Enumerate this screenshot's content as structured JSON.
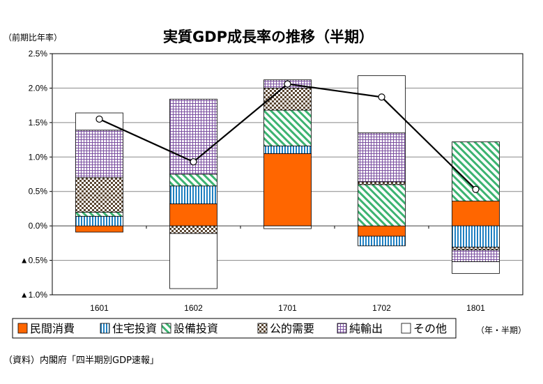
{
  "chart_data": {
    "type": "bar",
    "title": "実質GDP成長率の推移（半期）",
    "ylabel": "（前期比年率）",
    "xlabel": "（年・半期）",
    "source": "（資料）内閣府「四半期別GDP速報」",
    "categories": [
      "1601",
      "1602",
      "1701",
      "1702",
      "1801"
    ],
    "ylim": [
      -1.0,
      2.5
    ],
    "yticks": [
      2.5,
      2.0,
      1.5,
      1.0,
      0.5,
      0.0,
      -0.5,
      -1.0
    ],
    "ytick_labels": [
      "2.5%",
      "2.0%",
      "1.5%",
      "1.0%",
      "0.5%",
      "0.0%",
      "▲0.5%",
      "▲1.0%"
    ],
    "stacked": true,
    "series": [
      {
        "name": "民間消費",
        "pattern": "solid-orange",
        "color": "#ff6600",
        "values": [
          -0.09,
          0.32,
          1.05,
          -0.15,
          0.36
        ]
      },
      {
        "name": "住宅投資",
        "pattern": "vertical-lines",
        "color": "#1e7fc1",
        "values": [
          0.14,
          0.26,
          0.11,
          -0.14,
          -0.31
        ]
      },
      {
        "name": "設備投資",
        "pattern": "diagonal-lines",
        "color": "#3cb371",
        "values": [
          0.06,
          0.17,
          0.52,
          0.6,
          0.86
        ]
      },
      {
        "name": "公的需要",
        "pattern": "checker",
        "color": "#5a4632",
        "values": [
          0.5,
          -0.11,
          0.32,
          0.04,
          -0.04
        ]
      },
      {
        "name": "純輸出",
        "pattern": "grid",
        "color": "#7b4fa0",
        "values": [
          0.69,
          1.09,
          0.12,
          0.71,
          -0.17
        ]
      },
      {
        "name": "その他",
        "pattern": "blank",
        "color": "#ffffff",
        "values": [
          0.25,
          -0.8,
          -0.04,
          0.83,
          -0.17
        ]
      }
    ],
    "line": {
      "name": "実質GDP成長率",
      "values": [
        1.55,
        0.93,
        2.06,
        1.87,
        0.53
      ]
    },
    "grid": true,
    "legend": "bottom"
  }
}
